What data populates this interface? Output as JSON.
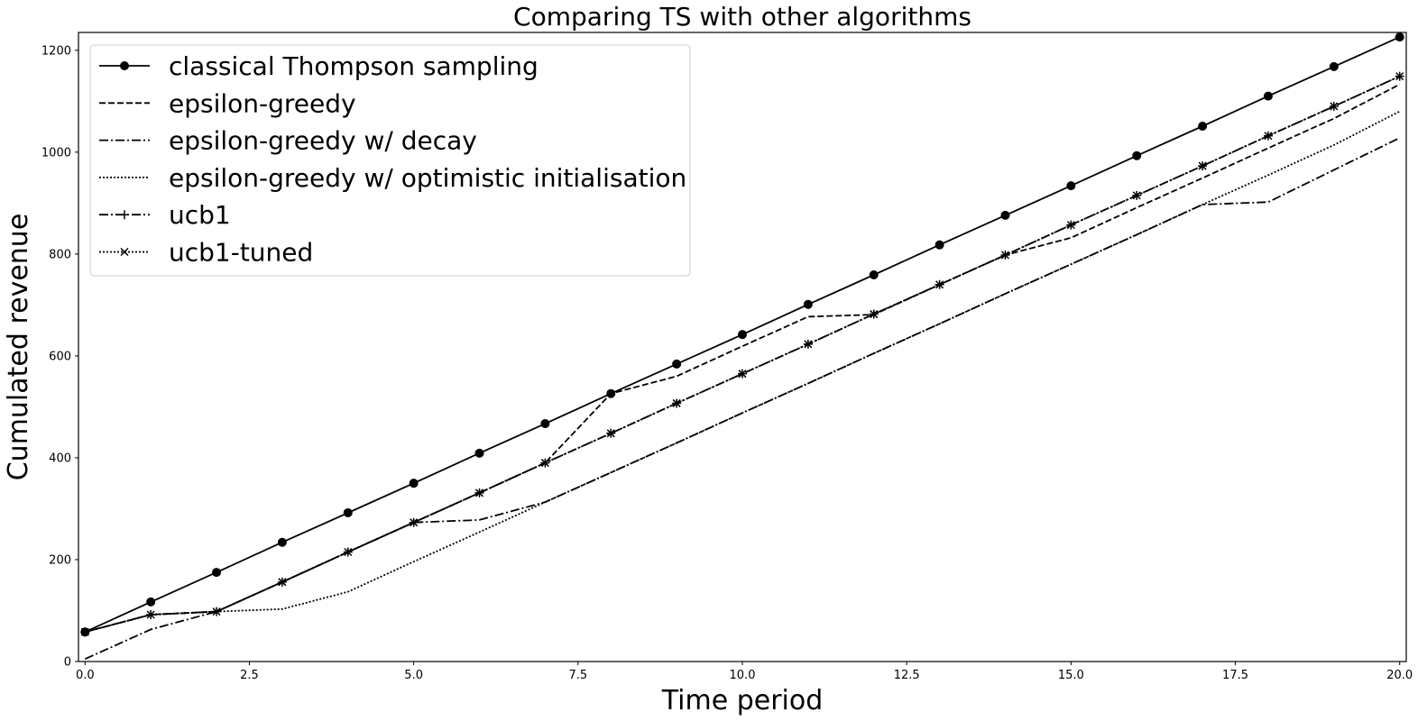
{
  "chart_data": {
    "type": "line",
    "title": "Comparing TS with other algorithms",
    "xlabel": "Time period",
    "ylabel": "Cumulated revenue",
    "xlim": [
      -0.1,
      20.1
    ],
    "ylim": [
      0,
      1235
    ],
    "xticks": [
      0.0,
      2.5,
      5.0,
      7.5,
      10.0,
      12.5,
      15.0,
      17.5,
      20.0
    ],
    "xtick_labels": [
      "0.0",
      "2.5",
      "5.0",
      "7.5",
      "10.0",
      "12.5",
      "15.0",
      "17.5",
      "20.0"
    ],
    "yticks": [
      0,
      200,
      400,
      600,
      800,
      1000,
      1200
    ],
    "ytick_labels": [
      "0",
      "200",
      "400",
      "600",
      "800",
      "1000",
      "1200"
    ],
    "grid": false,
    "legend_position": "top-left",
    "x": [
      0,
      1,
      2,
      3,
      4,
      5,
      6,
      7,
      8,
      9,
      10,
      11,
      12,
      13,
      14,
      15,
      16,
      17,
      18,
      19,
      20
    ],
    "series": [
      {
        "name": "classical Thompson sampling",
        "line_style": "solid",
        "marker": "circle",
        "color": "#000000",
        "values": [
          58,
          117,
          175,
          234,
          292,
          350,
          409,
          467,
          526,
          584,
          642,
          701,
          759,
          818,
          876,
          934,
          993,
          1051,
          1110,
          1168,
          1226
        ]
      },
      {
        "name": "epsilon-greedy",
        "line_style": "dashed",
        "marker": "none",
        "color": "#000000",
        "values": [
          58,
          92,
          98,
          156,
          215,
          273,
          331,
          390,
          526,
          560,
          619,
          677,
          681,
          740,
          798,
          832,
          891,
          949,
          1008,
          1066,
          1133
        ]
      },
      {
        "name": "epsilon-greedy w/ decay",
        "line_style": "dashdot",
        "marker": "none",
        "color": "#000000",
        "values": [
          5,
          63,
          98,
          156,
          215,
          273,
          278,
          313,
          371,
          429,
          488,
          546,
          605,
          663,
          722,
          780,
          838,
          897,
          902,
          965,
          1028
        ]
      },
      {
        "name": "epsilon-greedy w/ optimistic initialisation",
        "line_style": "dotted",
        "marker": "none",
        "color": "#000000",
        "values": [
          58,
          92,
          98,
          103,
          137,
          196,
          254,
          313,
          371,
          429,
          488,
          546,
          605,
          663,
          722,
          780,
          838,
          897,
          955,
          1014,
          1080
        ]
      },
      {
        "name": "ucb1",
        "line_style": "dashdot",
        "marker": "plus",
        "color": "#000000",
        "values": [
          58,
          92,
          98,
          156,
          215,
          273,
          331,
          390,
          448,
          507,
          565,
          623,
          682,
          740,
          798,
          857,
          915,
          973,
          1032,
          1090,
          1149
        ]
      },
      {
        "name": "ucb1-tuned",
        "line_style": "dotted",
        "marker": "x",
        "color": "#000000",
        "values": [
          58,
          92,
          98,
          156,
          215,
          273,
          331,
          390,
          448,
          507,
          565,
          623,
          682,
          740,
          798,
          857,
          915,
          973,
          1032,
          1090,
          1149
        ]
      }
    ]
  }
}
